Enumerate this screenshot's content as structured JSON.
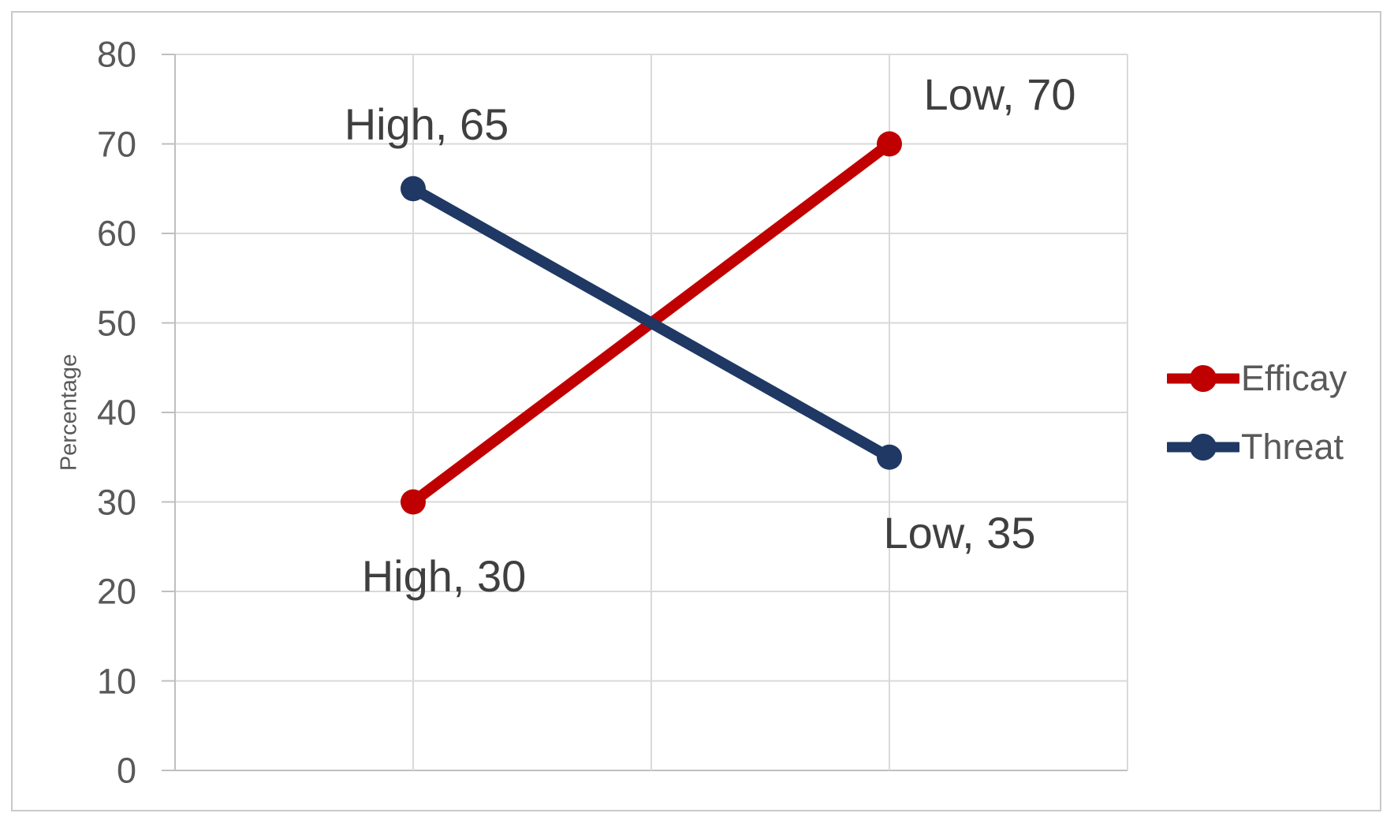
{
  "chart_data": {
    "type": "line",
    "categories": [
      "High",
      "Low"
    ],
    "series": [
      {
        "name": "Efficay",
        "color": "#C00000",
        "values": [
          30,
          70
        ],
        "data_labels": [
          {
            "text": "High, 30",
            "dx": 39,
            "dy": 94
          },
          {
            "text": "Low, 70",
            "dx": 140,
            "dy": -63
          }
        ]
      },
      {
        "name": "Threat",
        "color": "#1F3864",
        "values": [
          65,
          35
        ],
        "data_labels": [
          {
            "text": "High, 65",
            "dx": 17,
            "dy": -81
          },
          {
            "text": "Low, 35",
            "dx": 89,
            "dy": 96
          }
        ]
      }
    ],
    "title": "",
    "xlabel": "",
    "ylabel": "Percentage",
    "ylim": [
      0,
      80
    ],
    "ytick_step": 10,
    "yticks": [
      0,
      10,
      20,
      30,
      40,
      50,
      60,
      70,
      80
    ],
    "grid": true,
    "legend_position": "right",
    "colors": {
      "gridline": "#D9D9D9",
      "axis_line": "#BFBFBF",
      "tick_text": "#595959",
      "data_label_text": "#3F3F3F",
      "legend_text": "#595959",
      "frame_border": "#C9C9C9",
      "background": "#FFFFFF"
    }
  }
}
